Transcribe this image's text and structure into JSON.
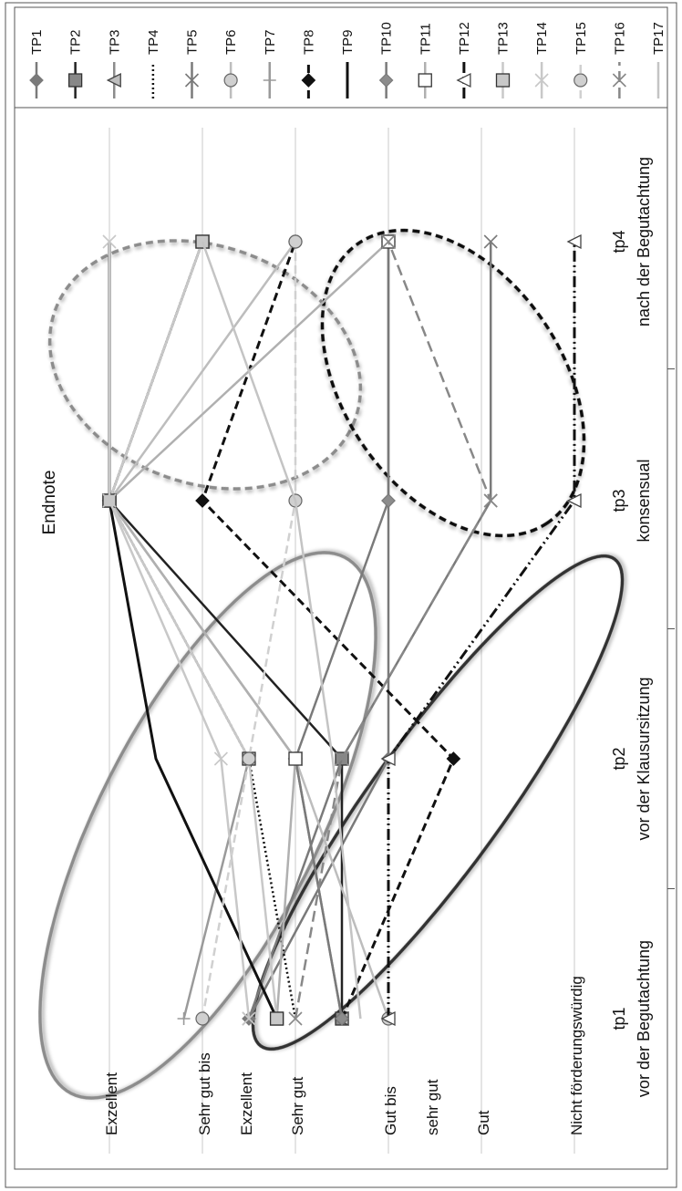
{
  "chart_data": {
    "type": "line",
    "orientation": "rotated-90-ccw",
    "title": "Endnote",
    "x_categories": [
      {
        "line1": "tp1",
        "line2": "vor der Begutachtung"
      },
      {
        "line1": "tp2",
        "line2": "vor der Klausursitzung"
      },
      {
        "line1": "tp3",
        "line2": "konsensual"
      },
      {
        "line1": "tp4",
        "line2": "nach der Begutachtung"
      }
    ],
    "y_scale": {
      "min": 0,
      "max": 10,
      "note": "ordinal grade scale, 10 = Exzellent, 0 = Nicht förderungswürdig"
    },
    "y_tick_labels": [
      {
        "value": 10,
        "text": "Exzellent"
      },
      {
        "value": 8.0,
        "text": "Sehr gut bis"
      },
      {
        "value": 7.1,
        "text": "Exzellent"
      },
      {
        "value": 6.0,
        "text": "Sehr gut"
      },
      {
        "value": 4.0,
        "text": "Gut bis"
      },
      {
        "value": 3.1,
        "text": "sehr gut"
      },
      {
        "value": 2.0,
        "text": "Gut"
      },
      {
        "value": 0.0,
        "text": "Nicht förderungswürdig"
      }
    ],
    "gridlines": [
      10,
      8,
      6,
      4,
      2,
      0
    ],
    "axis_ticks_between_groups": [
      1.5,
      2.5,
      3.5
    ],
    "legend_position": "right",
    "series": [
      {
        "name": "TP1",
        "color": "#7a7a7a",
        "dash": "",
        "width": 2.5,
        "marker": "diamond",
        "mfill": "#7a7a7a",
        "values": [
          7.0,
          4.0,
          4.0,
          4.0
        ]
      },
      {
        "name": "TP2",
        "color": "#222222",
        "dash": "",
        "width": 2.5,
        "marker": "square",
        "mfill": "#888888",
        "values": [
          5.0,
          5.0,
          10.0,
          8.0
        ]
      },
      {
        "name": "TP3",
        "color": "#8c8c8c",
        "dash": "",
        "width": 2.5,
        "marker": "triangle",
        "mfill": "#bdbdbd",
        "values": [
          5.0,
          6.0,
          10.0,
          8.0
        ]
      },
      {
        "name": "TP4",
        "color": "#111111",
        "dash": "2,3",
        "width": 2.5,
        "marker": "none",
        "mfill": "none",
        "values": [
          6.0,
          7.0,
          10.0,
          8.0
        ]
      },
      {
        "name": "TP5",
        "color": "#7a7a7a",
        "dash": "",
        "width": 2.5,
        "marker": "x",
        "mfill": "none",
        "values": [
          7.0,
          5.0,
          1.8,
          1.8
        ]
      },
      {
        "name": "TP6",
        "color": "#bdbdbd",
        "dash": "",
        "width": 2.5,
        "marker": "circle",
        "mfill": "#d0d0d0",
        "values": [
          4.0,
          6.0,
          10.0,
          6.0
        ]
      },
      {
        "name": "TP7",
        "color": "#9a9a9a",
        "dash": "",
        "width": 2.5,
        "marker": "plus",
        "mfill": "none",
        "values": [
          8.4,
          7.0,
          10.0,
          8.0
        ]
      },
      {
        "name": "TP8",
        "color": "#111111",
        "dash": "9,5",
        "width": 3.0,
        "marker": "diamond",
        "mfill": "#111111",
        "values": [
          5.0,
          2.6,
          8.0,
          6.0
        ]
      },
      {
        "name": "TP9",
        "color": "#111111",
        "dash": "",
        "width": 3.0,
        "marker": "none",
        "mfill": "none",
        "values": [
          6.4,
          9.0,
          10.0,
          10.0
        ]
      },
      {
        "name": "TP10",
        "color": "#7a7a7a",
        "dash": "",
        "width": 2.5,
        "marker": "diamond",
        "mfill": "#8c8c8c",
        "values": [
          5.0,
          6.0,
          4.0,
          4.0
        ]
      },
      {
        "name": "TP11",
        "color": "#b0b0b0",
        "dash": "",
        "width": 2.5,
        "marker": "square",
        "mfill": "#ffffff",
        "values": [
          6.4,
          6.0,
          10.0,
          4.0
        ]
      },
      {
        "name": "TP12",
        "color": "#111111",
        "dash": "12,4,2,4,2,4",
        "width": 3.0,
        "marker": "triangle",
        "mfill": "#ffffff",
        "values": [
          4.0,
          4.0,
          0.0,
          0.0
        ]
      },
      {
        "name": "TP13",
        "color": "#c8c8c8",
        "dash": "",
        "width": 2.5,
        "marker": "square",
        "mfill": "#c8c8c8",
        "values": [
          6.4,
          7.0,
          10.0,
          8.0
        ]
      },
      {
        "name": "TP14",
        "color": "#c8c8c8",
        "dash": "",
        "width": 2.5,
        "marker": "x",
        "mfill": "none",
        "values": [
          7.0,
          7.6,
          10.0,
          10.0
        ]
      },
      {
        "name": "TP15",
        "color": "#d0d0d0",
        "dash": "9,5",
        "width": 2.5,
        "marker": "circle",
        "mfill": "#d0d0d0",
        "values": [
          8.0,
          7.0,
          6.0,
          6.0
        ]
      },
      {
        "name": "TP16",
        "color": "#888888",
        "dash": "12,6",
        "width": 2.5,
        "marker": "x",
        "mfill": "none",
        "values": [
          6.0,
          5.0,
          1.8,
          4.0
        ]
      },
      {
        "name": "TP17",
        "color": "#c4c4c4",
        "dash": "",
        "width": 2.5,
        "marker": "none",
        "mfill": "none",
        "values": [
          4.6,
          5.2,
          6.0,
          8.0
        ]
      }
    ],
    "ellipses": [
      {
        "name": "group-tp1-tp2",
        "stroke": "#8c8c8c",
        "dash": "",
        "shadow": true
      },
      {
        "name": "group-low",
        "stroke": "#333333",
        "dash": "",
        "shadow": true
      },
      {
        "name": "group-tp3-tp4-high",
        "stroke": "#8c8c8c",
        "dash": "8,5",
        "shadow": true
      },
      {
        "name": "group-tp3-tp4-low",
        "stroke": "#111111",
        "dash": "8,5",
        "shadow": true
      }
    ]
  }
}
